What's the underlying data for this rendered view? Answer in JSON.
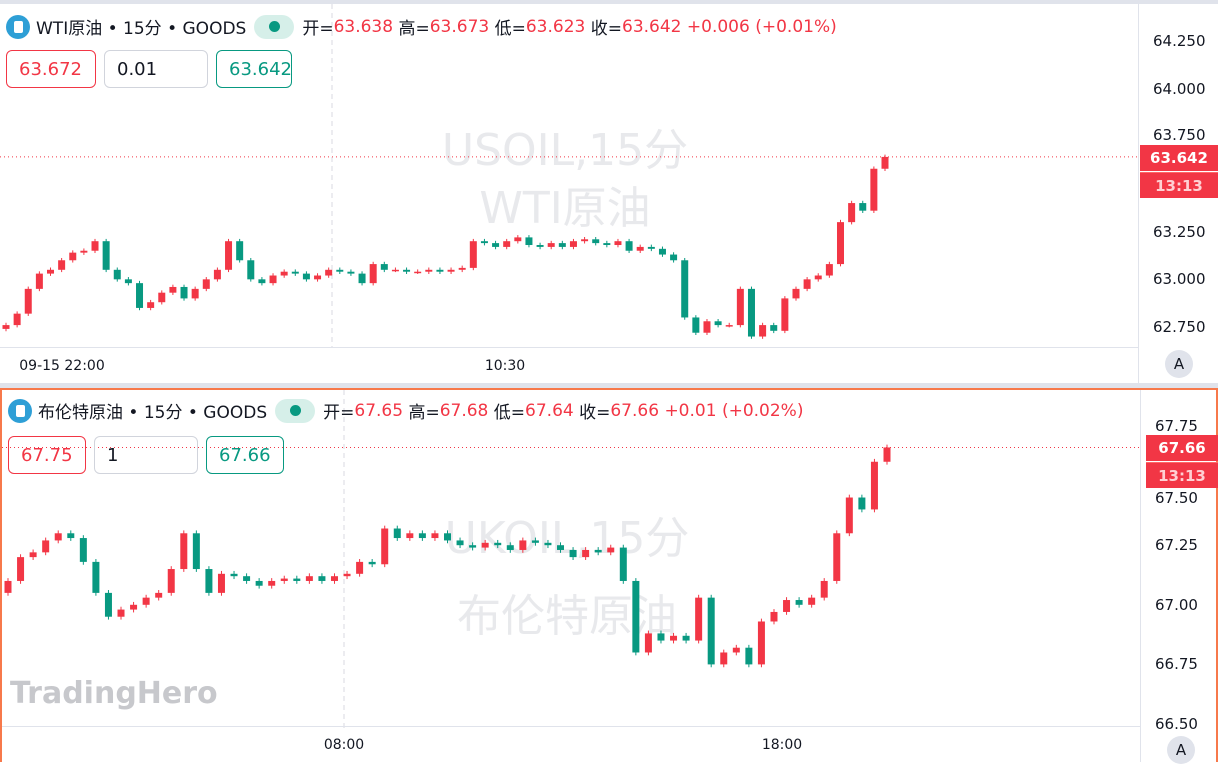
{
  "colors": {
    "up": "#f23645",
    "down": "#089981",
    "accent": "#f7794b"
  },
  "top": {
    "title": "WTI原油 • 15分 • GOODS",
    "icon": "oil-drop-icon",
    "ohlc": {
      "open_label": "开=",
      "open": "63.638",
      "high_label": "高=",
      "high": "63.673",
      "low_label": "低=",
      "low": "63.623",
      "close_label": "收=",
      "close": "63.642",
      "change": "+0.006",
      "change_pct": "(+0.01%)"
    },
    "sell": "63.672",
    "qty": "0.01",
    "buy": "63.642",
    "watermark1": "USOIL,15分",
    "watermark2": "WTI原油",
    "price_ticks": [
      "64.250",
      "64.000",
      "63.750",
      "63.250",
      "63.000",
      "62.750"
    ],
    "price_ticks_values": [
      64.25,
      64.0,
      63.75,
      63.25,
      63.0,
      62.75
    ],
    "last_price": "63.642",
    "countdown": "13:13",
    "time_labels": [
      "09-15 22:00",
      "10:30"
    ],
    "scale_button": "A",
    "first_open": 62.74,
    "closes": [
      62.76,
      62.82,
      62.95,
      63.03,
      63.05,
      63.1,
      63.14,
      63.15,
      63.2,
      63.05,
      63.0,
      62.98,
      62.85,
      62.88,
      62.93,
      62.96,
      62.9,
      62.95,
      63.0,
      63.05,
      63.2,
      63.1,
      63.0,
      62.98,
      63.02,
      63.04,
      63.03,
      63.0,
      63.02,
      63.05,
      63.04,
      63.03,
      62.98,
      63.08,
      63.05,
      63.05,
      63.04,
      63.04,
      63.05,
      63.04,
      63.05,
      63.06,
      63.2,
      63.19,
      63.17,
      63.2,
      63.22,
      63.18,
      63.17,
      63.19,
      63.17,
      63.2,
      63.21,
      63.19,
      63.18,
      63.2,
      63.15,
      63.17,
      63.16,
      63.13,
      63.1,
      62.8,
      62.72,
      62.78,
      62.76,
      62.76,
      62.95,
      62.7,
      62.76,
      62.73,
      62.9,
      62.95,
      63.0,
      63.02,
      63.08,
      63.3,
      63.4,
      63.36,
      63.58,
      63.642
    ]
  },
  "bottom": {
    "title": "布伦特原油 • 15分 • GOODS",
    "icon": "oil-drop-icon",
    "ohlc": {
      "open_label": "开=",
      "open": "67.65",
      "high_label": "高=",
      "high": "67.68",
      "low_label": "低=",
      "low": "67.64",
      "close_label": "收=",
      "close": "67.66",
      "change": "+0.01",
      "change_pct": "(+0.02%)"
    },
    "sell": "67.75",
    "qty": "1",
    "buy": "67.66",
    "watermark1": "UKOIL,15分",
    "watermark2": "布伦特原油",
    "price_ticks": [
      "67.75",
      "67.50",
      "67.25",
      "67.00",
      "66.75",
      "66.50"
    ],
    "price_ticks_values": [
      67.75,
      67.5,
      67.25,
      67.0,
      66.75,
      66.5
    ],
    "last_price": "67.66",
    "countdown": "13:13",
    "time_labels": [
      "08:00",
      "18:00"
    ],
    "scale_button": "A",
    "brand": "TradingHero",
    "first_open": 67.05,
    "closes": [
      67.1,
      67.2,
      67.22,
      67.27,
      67.3,
      67.28,
      67.18,
      67.05,
      66.95,
      66.98,
      67.0,
      67.03,
      67.05,
      67.15,
      67.3,
      67.15,
      67.05,
      67.13,
      67.12,
      67.1,
      67.08,
      67.1,
      67.11,
      67.1,
      67.12,
      67.1,
      67.12,
      67.13,
      67.18,
      67.17,
      67.32,
      67.28,
      67.3,
      67.28,
      67.3,
      67.27,
      67.25,
      67.24,
      67.26,
      67.25,
      67.23,
      67.27,
      67.26,
      67.25,
      67.23,
      67.2,
      67.23,
      67.22,
      67.24,
      67.1,
      66.8,
      66.88,
      66.85,
      66.87,
      66.85,
      67.03,
      66.75,
      66.8,
      66.82,
      66.75,
      66.93,
      66.97,
      67.02,
      67.0,
      67.03,
      67.1,
      67.3,
      67.45,
      67.4,
      67.6,
      67.66
    ]
  }
}
